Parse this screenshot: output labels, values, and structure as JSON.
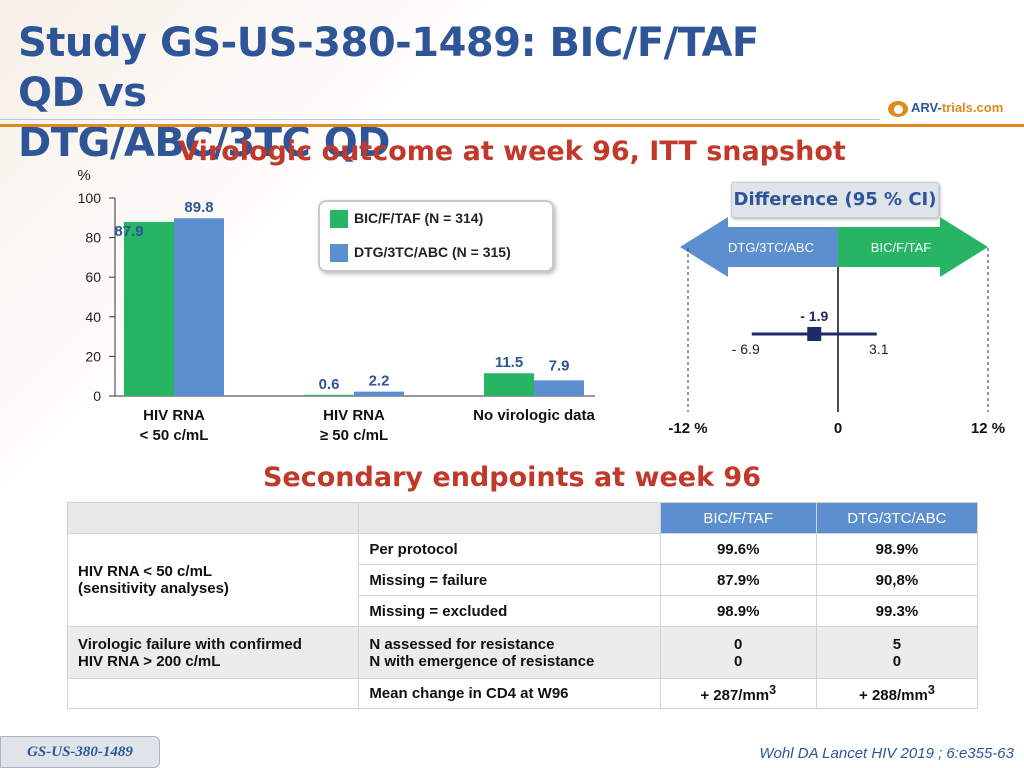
{
  "header": {
    "title_line1": "Study GS-US-380-1489: BIC/F/TAF QD vs",
    "title_line2": "DTG/ABC/3TC QD",
    "logo_text_a": "ARV-",
    "logo_text_b": "trials",
    "logo_text_c": ".com"
  },
  "section1_title": "Virologic outcome at week 96, ITT snapshot",
  "section2_title": "Secondary endpoints at week 96",
  "colors": {
    "bic": "#27b564",
    "dtg": "#5b8fd0",
    "accent": "#c0392b",
    "title": "#2e5597"
  },
  "chart_data": [
    {
      "type": "bar",
      "ylabel": "%",
      "ylim": [
        0,
        100
      ],
      "yticks": [
        "0",
        "20",
        "40",
        "60",
        "80",
        "100"
      ],
      "categories": [
        "HIV RNA\n< 50 c/mL",
        "HIV RNA\n≥ 50 c/mL",
        "No virologic data"
      ],
      "series": [
        {
          "name": "BIC/F/TAF (N = 314)",
          "values": [
            87.9,
            0.6,
            11.5
          ],
          "labels": [
            "87.9",
            "0.6",
            "11.5"
          ]
        },
        {
          "name": "DTG/3TC/ABC (N = 315)",
          "values": [
            89.8,
            2.2,
            7.9
          ],
          "labels": [
            "89.8",
            "2.2",
            "7.9"
          ]
        }
      ]
    },
    {
      "type": "scatter",
      "title": "Difference (95 % CI)",
      "arrow_left": "DTG/3TC/ABC",
      "arrow_right": "BIC/F/TAF",
      "xlim": [
        -12,
        12
      ],
      "xticks": [
        "-12 %",
        "0",
        "12 %"
      ],
      "point": -1.9,
      "point_label": "- 1.9",
      "ci_low": -6.9,
      "ci_low_label": "- 6.9",
      "ci_high": 3.1,
      "ci_high_label": "3.1"
    }
  ],
  "table": {
    "header": [
      "",
      "",
      "BIC/F/TAF",
      "DTG/3TC/ABC"
    ],
    "group1_label_1": "HIV RNA < 50 c/mL",
    "group1_label_2": "(sensitivity analyses)",
    "rows": [
      {
        "measure": "Per protocol",
        "bic": "99.6%",
        "dtg": "98.9%"
      },
      {
        "measure": "Missing = failure",
        "bic": "87.9%",
        "dtg": "90,8%"
      },
      {
        "measure": "Missing = excluded",
        "bic": "98.9%",
        "dtg": "99.3%"
      }
    ],
    "group2_label_1": "Virologic failure with confirmed",
    "group2_label_2": "HIV RNA > 200 c/mL",
    "group2_measure_1": "N assessed for resistance",
    "group2_measure_2": "N with emergence of resistance",
    "group2_bic_1": "0",
    "group2_bic_2": "0",
    "group2_dtg_1": "5",
    "group2_dtg_2": "0",
    "cd4_measure": "Mean change in CD4 at W96",
    "cd4_bic": "+ 287/mm",
    "cd4_dtg": "+ 288/mm",
    "cd4_sup": "3"
  },
  "footer": {
    "study": "GS-US-380-1489",
    "reference": "Wohl DA Lancet HIV 2019 ; 6:e355-63"
  }
}
